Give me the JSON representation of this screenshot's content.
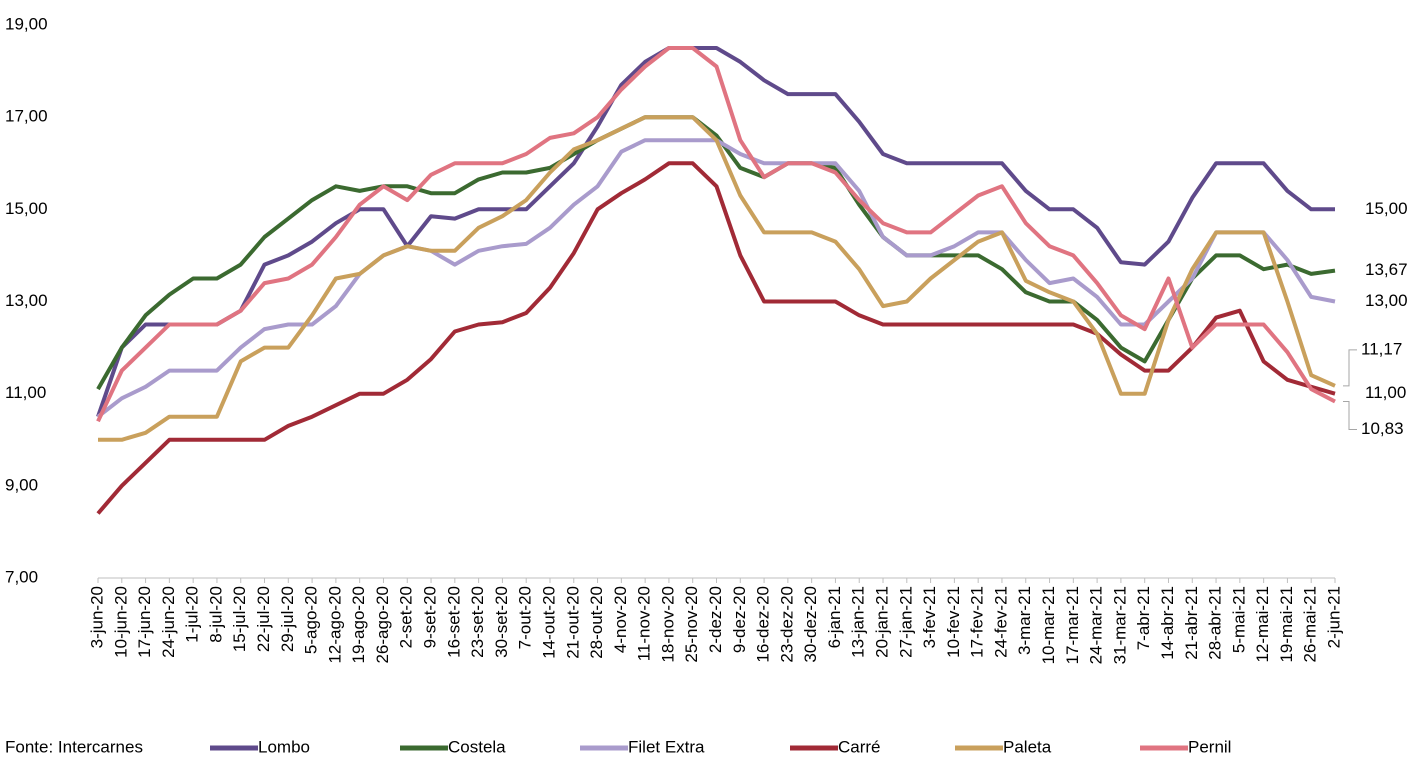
{
  "chart_data": {
    "type": "line",
    "source": "Fonte: Intercarnes",
    "categories": [
      "3-jun-20",
      "10-jun-20",
      "17-jun-20",
      "24-jun-20",
      "1-jul-20",
      "8-jul-20",
      "15-jul-20",
      "22-jul-20",
      "29-jul-20",
      "5-ago-20",
      "12-ago-20",
      "19-ago-20",
      "26-ago-20",
      "2-set-20",
      "9-set-20",
      "16-set-20",
      "23-set-20",
      "30-set-20",
      "7-out-20",
      "14-out-20",
      "21-out-20",
      "28-out-20",
      "4-nov-20",
      "11-nov-20",
      "18-nov-20",
      "25-nov-20",
      "2-dez-20",
      "9-dez-20",
      "16-dez-20",
      "23-dez-20",
      "30-dez-20",
      "6-jan-21",
      "13-jan-21",
      "20-jan-21",
      "27-jan-21",
      "3-fev-21",
      "10-fev-21",
      "17-fev-21",
      "24-fev-21",
      "3-mar-21",
      "10-mar-21",
      "17-mar-21",
      "24-mar-21",
      "31-mar-21",
      "7-abr-21",
      "14-abr-21",
      "21-abr-21",
      "28-abr-21",
      "5-mai-21",
      "12-mai-21",
      "19-mai-21",
      "26-mai-21",
      "2-jun-21"
    ],
    "ylim": [
      7,
      19
    ],
    "yticks": [
      {
        "value": 7,
        "label": "7,00"
      },
      {
        "value": 9,
        "label": "9,00"
      },
      {
        "value": 11,
        "label": "11,00"
      },
      {
        "value": 13,
        "label": "13,00"
      },
      {
        "value": 15,
        "label": "15,00"
      },
      {
        "value": 17,
        "label": "17,00"
      },
      {
        "value": 19,
        "label": "19,00"
      }
    ],
    "series": [
      {
        "name": "Lombo",
        "color": "#5f4a8b",
        "values": [
          10.5,
          12.0,
          12.5,
          12.5,
          12.5,
          12.5,
          12.8,
          13.8,
          14.0,
          14.3,
          14.7,
          15.0,
          15.0,
          14.2,
          14.85,
          14.8,
          15.0,
          15.0,
          15.0,
          15.5,
          16.0,
          16.8,
          17.7,
          18.2,
          18.5,
          18.5,
          18.5,
          18.2,
          17.8,
          17.5,
          17.5,
          17.5,
          16.9,
          16.2,
          16.0,
          16.0,
          16.0,
          16.0,
          16.0,
          15.4,
          15.0,
          15.0,
          14.6,
          13.85,
          13.8,
          14.3,
          15.25,
          16.0,
          16.0,
          16.0,
          15.4,
          15.0,
          15.0
        ],
        "value_labels": [
          null,
          null,
          null,
          null,
          null,
          null,
          null,
          null,
          null,
          null,
          null,
          null,
          null,
          null,
          null,
          null,
          null,
          null,
          null,
          null,
          null,
          null,
          null,
          null,
          null,
          null,
          null,
          null,
          null,
          null,
          null,
          null,
          null,
          null,
          null,
          null,
          null,
          null,
          null,
          null,
          null,
          null,
          null,
          null,
          null,
          null,
          null,
          null,
          null,
          null,
          null,
          null,
          "15,00"
        ]
      },
      {
        "name": "Costela",
        "color": "#3b6a30",
        "values": [
          11.1,
          12.0,
          12.7,
          13.15,
          13.5,
          13.5,
          13.8,
          14.4,
          14.8,
          15.2,
          15.5,
          15.4,
          15.5,
          15.5,
          15.35,
          15.35,
          15.65,
          15.8,
          15.8,
          15.9,
          16.2,
          16.5,
          16.75,
          17.0,
          17.0,
          17.0,
          16.6,
          15.9,
          15.7,
          16.0,
          16.0,
          15.9,
          15.1,
          14.4,
          14.0,
          14.0,
          14.0,
          14.0,
          13.7,
          13.2,
          13.0,
          13.0,
          12.6,
          12.0,
          11.7,
          12.6,
          13.5,
          14.0,
          14.0,
          13.7,
          13.8,
          13.6,
          13.67
        ],
        "value_labels": [
          null,
          null,
          null,
          null,
          null,
          null,
          null,
          null,
          null,
          null,
          null,
          null,
          null,
          null,
          null,
          null,
          null,
          null,
          null,
          null,
          null,
          null,
          null,
          null,
          null,
          null,
          null,
          null,
          null,
          null,
          null,
          null,
          null,
          null,
          null,
          null,
          null,
          null,
          null,
          null,
          null,
          null,
          null,
          null,
          null,
          null,
          null,
          null,
          null,
          null,
          null,
          null,
          "13,67"
        ]
      },
      {
        "name": "Filet Extra",
        "color": "#a99bcc",
        "values": [
          10.5,
          10.9,
          11.15,
          11.5,
          11.5,
          11.5,
          12.0,
          12.4,
          12.5,
          12.5,
          12.9,
          13.6,
          14.0,
          14.2,
          14.1,
          13.8,
          14.1,
          14.2,
          14.25,
          14.6,
          15.1,
          15.5,
          16.25,
          16.5,
          16.5,
          16.5,
          16.5,
          16.2,
          16.0,
          16.0,
          16.0,
          16.0,
          15.4,
          14.4,
          14.0,
          14.0,
          14.2,
          14.5,
          14.5,
          13.9,
          13.4,
          13.5,
          13.1,
          12.5,
          12.5,
          13.0,
          13.5,
          14.5,
          14.5,
          14.5,
          13.9,
          13.1,
          13.0
        ],
        "value_labels": [
          null,
          null,
          null,
          null,
          null,
          null,
          null,
          null,
          null,
          null,
          null,
          null,
          null,
          null,
          null,
          null,
          null,
          null,
          null,
          null,
          null,
          null,
          null,
          null,
          null,
          null,
          null,
          null,
          null,
          null,
          null,
          null,
          null,
          null,
          null,
          null,
          null,
          null,
          null,
          null,
          null,
          null,
          null,
          null,
          null,
          null,
          null,
          null,
          null,
          null,
          null,
          null,
          "13,00"
        ]
      },
      {
        "name": "Carré",
        "color": "#a12a36",
        "values": [
          8.4,
          9.0,
          9.5,
          10.0,
          10.0,
          10.0,
          10.0,
          10.0,
          10.3,
          10.5,
          10.75,
          11.0,
          11.0,
          11.3,
          11.75,
          12.35,
          12.5,
          12.55,
          12.75,
          13.3,
          14.05,
          15.0,
          15.35,
          15.65,
          16.0,
          16.0,
          15.5,
          14.0,
          13.0,
          13.0,
          13.0,
          13.0,
          12.7,
          12.5,
          12.5,
          12.5,
          12.5,
          12.5,
          12.5,
          12.5,
          12.5,
          12.5,
          12.3,
          11.85,
          11.5,
          11.5,
          12.0,
          12.65,
          12.8,
          11.7,
          11.3,
          11.15,
          11.0
        ],
        "value_labels": [
          null,
          null,
          null,
          null,
          null,
          null,
          null,
          null,
          null,
          null,
          null,
          null,
          null,
          null,
          null,
          null,
          null,
          null,
          null,
          null,
          null,
          null,
          null,
          null,
          null,
          null,
          null,
          null,
          null,
          null,
          null,
          null,
          null,
          null,
          null,
          null,
          null,
          null,
          null,
          null,
          null,
          null,
          null,
          null,
          null,
          null,
          null,
          null,
          null,
          null,
          null,
          null,
          "11,00"
        ]
      },
      {
        "name": "Paleta",
        "color": "#c9a05c",
        "values": [
          10.0,
          10.0,
          10.15,
          10.5,
          10.5,
          10.5,
          11.7,
          12.0,
          12.0,
          12.7,
          13.5,
          13.6,
          14.0,
          14.2,
          14.1,
          14.1,
          14.6,
          14.85,
          15.2,
          15.8,
          16.3,
          16.5,
          16.75,
          17.0,
          17.0,
          17.0,
          16.5,
          15.3,
          14.5,
          14.5,
          14.5,
          14.3,
          13.7,
          12.9,
          13.0,
          13.5,
          13.9,
          14.3,
          14.5,
          13.45,
          13.2,
          13.0,
          12.3,
          11.0,
          11.0,
          12.6,
          13.7,
          14.5,
          14.5,
          14.5,
          13.0,
          11.4,
          11.17
        ],
        "value_labels": [
          null,
          null,
          null,
          null,
          null,
          null,
          null,
          null,
          null,
          null,
          null,
          null,
          null,
          null,
          null,
          null,
          null,
          null,
          null,
          null,
          null,
          null,
          null,
          null,
          null,
          null,
          null,
          null,
          null,
          null,
          null,
          null,
          null,
          null,
          null,
          null,
          null,
          null,
          null,
          null,
          null,
          null,
          null,
          null,
          null,
          null,
          null,
          null,
          null,
          null,
          null,
          null,
          "11,17"
        ]
      },
      {
        "name": "Pernil",
        "color": "#e07481",
        "values": [
          10.4,
          11.5,
          12.0,
          12.5,
          12.5,
          12.5,
          12.8,
          13.4,
          13.5,
          13.8,
          14.4,
          15.1,
          15.5,
          15.2,
          15.75,
          16.0,
          16.0,
          16.0,
          16.2,
          16.55,
          16.65,
          17.0,
          17.6,
          18.1,
          18.5,
          18.5,
          18.1,
          16.5,
          15.7,
          16.0,
          16.0,
          15.8,
          15.2,
          14.7,
          14.5,
          14.5,
          14.9,
          15.3,
          15.5,
          14.7,
          14.2,
          14.0,
          13.4,
          12.7,
          12.4,
          13.5,
          12.0,
          12.5,
          12.5,
          12.5,
          11.9,
          11.1,
          10.83
        ],
        "value_labels": [
          null,
          null,
          null,
          null,
          null,
          null,
          null,
          null,
          null,
          null,
          null,
          null,
          null,
          null,
          null,
          null,
          null,
          null,
          null,
          null,
          null,
          null,
          null,
          null,
          null,
          null,
          null,
          null,
          null,
          null,
          null,
          null,
          null,
          null,
          null,
          null,
          null,
          null,
          null,
          null,
          null,
          null,
          null,
          null,
          null,
          null,
          null,
          null,
          null,
          null,
          null,
          null,
          "10,83"
        ]
      }
    ]
  }
}
